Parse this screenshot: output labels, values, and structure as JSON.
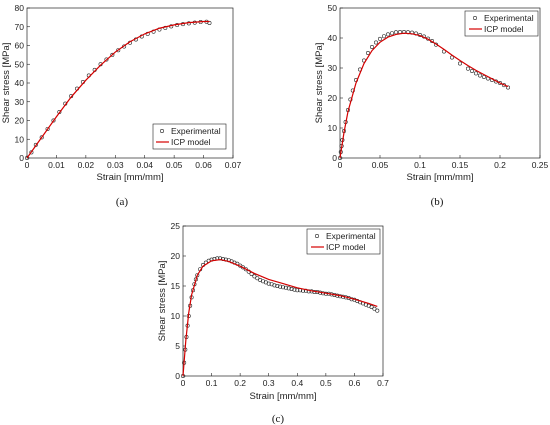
{
  "chart_data": [
    {
      "type": "line",
      "panel_label": "(a)",
      "xlabel": "Strain [mm/mm]",
      "ylabel": "Shear stress [MPa]",
      "xlim": [
        0,
        0.07
      ],
      "ylim": [
        0,
        80
      ],
      "xticks": [
        "0",
        "0.01",
        "0.02",
        "0.03",
        "0.04",
        "0.05",
        "0.06",
        "0.07"
      ],
      "yticks": [
        "0",
        "10",
        "20",
        "30",
        "40",
        "50",
        "60",
        "70",
        "80"
      ],
      "legend": "bottom-right",
      "grid": false,
      "series": [
        {
          "name": "Experimental",
          "style": "markers",
          "x": [
            0,
            0.0015,
            0.003,
            0.005,
            0.007,
            0.009,
            0.011,
            0.013,
            0.015,
            0.017,
            0.019,
            0.021,
            0.023,
            0.025,
            0.027,
            0.029,
            0.031,
            0.033,
            0.035,
            0.037,
            0.039,
            0.041,
            0.043,
            0.045,
            0.047,
            0.049,
            0.051,
            0.053,
            0.055,
            0.057,
            0.059,
            0.061,
            0.062
          ],
          "y": [
            0,
            3,
            7,
            11,
            15.5,
            20,
            24.5,
            29,
            33,
            37,
            40.5,
            44,
            47,
            50,
            52.5,
            55,
            57.5,
            59.5,
            61.5,
            63.2,
            64.8,
            66.2,
            67.4,
            68.5,
            69.4,
            70.2,
            70.9,
            71.4,
            71.8,
            72.2,
            72.5,
            72.7,
            72
          ]
        },
        {
          "name": "ICP model",
          "style": "line",
          "color": "#d40000",
          "x": [
            0,
            0.005,
            0.01,
            0.015,
            0.02,
            0.025,
            0.03,
            0.035,
            0.04,
            0.045,
            0.05,
            0.055,
            0.06,
            0.062
          ],
          "y": [
            0,
            11,
            22,
            32.5,
            41.5,
            49.5,
            56.5,
            62,
            66.2,
            69.2,
            71,
            72.2,
            72.8,
            72.8
          ]
        }
      ]
    },
    {
      "type": "line",
      "panel_label": "(b)",
      "xlabel": "Strain [mm/mm]",
      "ylabel": "Shear stress [MPa]",
      "xlim": [
        0,
        0.25
      ],
      "ylim": [
        0,
        50
      ],
      "xticks": [
        "0",
        "0.05",
        "0.1",
        "0.15",
        "0.2",
        "0.25"
      ],
      "yticks": [
        "0",
        "10",
        "20",
        "30",
        "40",
        "50"
      ],
      "legend": "top-right",
      "grid": false,
      "series": [
        {
          "name": "Experimental",
          "style": "markers",
          "x": [
            0,
            0.001,
            0.002,
            0.003,
            0.005,
            0.007,
            0.01,
            0.013,
            0.016,
            0.02,
            0.025,
            0.03,
            0.035,
            0.04,
            0.045,
            0.05,
            0.055,
            0.06,
            0.065,
            0.07,
            0.075,
            0.08,
            0.085,
            0.09,
            0.095,
            0.1,
            0.105,
            0.11,
            0.115,
            0.12,
            0.13,
            0.14,
            0.15,
            0.16,
            0.165,
            0.17,
            0.175,
            0.18,
            0.185,
            0.19,
            0.195,
            0.2,
            0.205,
            0.21
          ],
          "y": [
            0,
            2,
            4,
            6,
            9,
            12,
            16,
            19.5,
            22.5,
            26,
            29.5,
            32.5,
            35,
            37,
            38.5,
            39.7,
            40.6,
            41.2,
            41.6,
            41.9,
            42,
            42,
            41.9,
            41.8,
            41.5,
            41,
            40.5,
            39.8,
            39,
            37.8,
            35.5,
            33.5,
            31.5,
            29.8,
            29,
            28.2,
            27.5,
            27,
            26.5,
            26,
            25.5,
            25,
            24.3,
            23.5
          ]
        },
        {
          "name": "ICP model",
          "style": "line",
          "color": "#d40000",
          "x": [
            0,
            0.005,
            0.01,
            0.02,
            0.03,
            0.04,
            0.05,
            0.06,
            0.07,
            0.08,
            0.09,
            0.1,
            0.11,
            0.12,
            0.13,
            0.14,
            0.15,
            0.16,
            0.17,
            0.18,
            0.19,
            0.2,
            0.21
          ],
          "y": [
            0,
            8.5,
            15.5,
            25,
            31.5,
            35.8,
            38.6,
            40.3,
            41.2,
            41.6,
            41.4,
            40.8,
            39.6,
            38,
            36.2,
            34.3,
            32.5,
            30.8,
            29.2,
            27.8,
            26.4,
            25,
            23.8
          ]
        }
      ]
    },
    {
      "type": "line",
      "panel_label": "(c)",
      "xlabel": "Strain [mm/mm]",
      "ylabel": "Shear stress [MPa]",
      "xlim": [
        0,
        0.7
      ],
      "ylim": [
        0,
        25
      ],
      "xticks": [
        "0",
        "0.1",
        "0.2",
        "0.3",
        "0.4",
        "0.5",
        "0.6",
        "0.7"
      ],
      "yticks": [
        "0",
        "5",
        "10",
        "15",
        "20",
        "25"
      ],
      "legend": "top-right",
      "grid": false,
      "series": [
        {
          "name": "Experimental",
          "style": "markers",
          "x": [
            0,
            0.004,
            0.008,
            0.012,
            0.016,
            0.02,
            0.025,
            0.03,
            0.035,
            0.04,
            0.045,
            0.05,
            0.06,
            0.07,
            0.08,
            0.09,
            0.1,
            0.11,
            0.12,
            0.13,
            0.14,
            0.15,
            0.16,
            0.17,
            0.18,
            0.19,
            0.2,
            0.21,
            0.22,
            0.23,
            0.24,
            0.25,
            0.26,
            0.27,
            0.28,
            0.29,
            0.3,
            0.31,
            0.32,
            0.33,
            0.34,
            0.35,
            0.36,
            0.37,
            0.38,
            0.39,
            0.4,
            0.41,
            0.42,
            0.43,
            0.44,
            0.45,
            0.46,
            0.47,
            0.48,
            0.49,
            0.5,
            0.51,
            0.52,
            0.53,
            0.54,
            0.55,
            0.56,
            0.57,
            0.58,
            0.59,
            0.6,
            0.61,
            0.62,
            0.63,
            0.64,
            0.65,
            0.66,
            0.67,
            0.68
          ],
          "y": [
            0,
            2.2,
            4.4,
            6.5,
            8.4,
            10,
            11.7,
            13.1,
            14.3,
            15.3,
            16.1,
            16.8,
            17.8,
            18.5,
            18.9,
            19.2,
            19.4,
            19.5,
            19.6,
            19.6,
            19.5,
            19.4,
            19.3,
            19.1,
            18.9,
            18.7,
            18.4,
            18.1,
            17.8,
            17.4,
            17,
            16.6,
            16.3,
            16,
            15.8,
            15.6,
            15.4,
            15.3,
            15.1,
            15,
            14.9,
            14.8,
            14.7,
            14.6,
            14.5,
            14.4,
            14.3,
            14.3,
            14.2,
            14.2,
            14.1,
            14.1,
            14,
            14,
            13.9,
            13.8,
            13.7,
            13.7,
            13.6,
            13.5,
            13.4,
            13.3,
            13.2,
            13.1,
            13,
            12.8,
            12.7,
            12.5,
            12.3,
            12.1,
            11.9,
            11.7,
            11.5,
            11.2,
            10.9
          ]
        },
        {
          "name": "ICP model",
          "style": "line",
          "color": "#d40000",
          "x": [
            0,
            0.01,
            0.02,
            0.03,
            0.05,
            0.07,
            0.1,
            0.13,
            0.16,
            0.2,
            0.25,
            0.3,
            0.35,
            0.4,
            0.45,
            0.5,
            0.55,
            0.6,
            0.65,
            0.68
          ],
          "y": [
            0,
            6,
            10.5,
            13.5,
            16.8,
            18.3,
            19.2,
            19.4,
            19.1,
            18.3,
            17.1,
            16.1,
            15.4,
            14.7,
            14.2,
            13.8,
            13.4,
            12.8,
            12.1,
            11.6
          ]
        }
      ]
    }
  ]
}
